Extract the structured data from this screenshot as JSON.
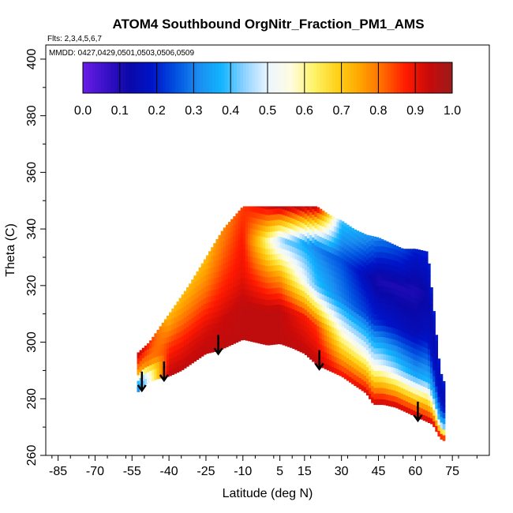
{
  "chart_data": {
    "type": "heatmap",
    "title": "ATOM4 Southbound OrgNitr_Fraction_PM1_AMS",
    "flights_label": "Flts: 2,3,4,5,6,7",
    "dates_label": "MMDD: 0427,0429,0501,0503,0506,0509",
    "xlabel": "Latitude (deg N)",
    "ylabel": "Theta (C)",
    "xlim": [
      -90,
      90
    ],
    "ylim": [
      260,
      405
    ],
    "x_ticks": [
      -85,
      -70,
      -55,
      -40,
      -25,
      -10,
      5,
      15,
      30,
      45,
      60,
      75
    ],
    "x_tick_labels": [
      "-85",
      "-70",
      "-55",
      "-40",
      "-25",
      "-10",
      "5",
      "15",
      "30",
      "45",
      "60",
      "75"
    ],
    "y_ticks": [
      260,
      280,
      300,
      320,
      340,
      360,
      380,
      400
    ],
    "y_tick_labels": [
      "260",
      "280",
      "300",
      "320",
      "340",
      "360",
      "380",
      "400"
    ],
    "colorbar": {
      "min": 0.0,
      "max": 1.0,
      "tick_labels": [
        "0.0",
        "0.1",
        "0.2",
        "0.3",
        "0.4",
        "0.5",
        "0.6",
        "0.7",
        "0.8",
        "0.9",
        "1.0"
      ],
      "colors": [
        "#6a1ee6",
        "#3a10c8",
        "#0a08a8",
        "#0014c8",
        "#0050e0",
        "#1a8cf0",
        "#12b4ff",
        "#8ed2ff",
        "#eaf6ff",
        "#fffce0",
        "#fff36a",
        "#ffd21a",
        "#ffa500",
        "#ff6a00",
        "#ff1a00",
        "#c80a0a",
        "#9b1b1b"
      ]
    },
    "profile_latitudes": [
      -51,
      -42,
      -20,
      21,
      61
    ],
    "surface_theta": [
      [
        -53,
        282
      ],
      [
        -50,
        285
      ],
      [
        -45,
        287
      ],
      [
        -40,
        288
      ],
      [
        -35,
        290
      ],
      [
        -30,
        293
      ],
      [
        -25,
        296
      ],
      [
        -20,
        297
      ],
      [
        -15,
        299
      ],
      [
        -10,
        301
      ],
      [
        -5,
        300
      ],
      [
        0,
        299
      ],
      [
        5,
        299.5
      ],
      [
        10,
        298
      ],
      [
        15,
        296
      ],
      [
        20,
        292
      ],
      [
        25,
        290
      ],
      [
        30,
        288
      ],
      [
        35,
        285
      ],
      [
        40,
        282
      ],
      [
        43,
        278
      ],
      [
        47,
        278
      ],
      [
        52,
        277
      ],
      [
        57,
        275
      ],
      [
        62,
        273
      ],
      [
        67,
        271
      ],
      [
        70,
        266
      ],
      [
        72,
        265
      ]
    ],
    "top_theta": [
      [
        -53,
        296
      ],
      [
        -48,
        300
      ],
      [
        -40,
        310
      ],
      [
        -32,
        320
      ],
      [
        -25,
        330
      ],
      [
        -18,
        340
      ],
      [
        -10,
        348
      ],
      [
        20,
        348
      ],
      [
        25,
        345
      ],
      [
        30,
        343
      ],
      [
        35,
        340
      ],
      [
        40,
        338
      ],
      [
        45,
        337
      ],
      [
        50,
        335
      ],
      [
        55,
        333
      ],
      [
        60,
        333
      ],
      [
        65,
        332
      ],
      [
        70,
        290
      ],
      [
        72,
        285
      ]
    ],
    "fraction_bands": [
      {
        "lat": -52,
        "values": [
          0.3,
          0.4,
          0.75,
          0.85,
          0.95
        ]
      },
      {
        "lat": -40,
        "values": [
          0.95,
          0.9,
          0.85,
          0.78,
          0.72
        ]
      },
      {
        "lat": -25,
        "values": [
          0.95,
          0.92,
          0.85,
          0.78,
          0.72
        ]
      },
      {
        "lat": -10,
        "values": [
          0.95,
          0.95,
          0.9,
          0.88,
          0.85
        ]
      },
      {
        "lat": 5,
        "values": [
          0.95,
          0.95,
          0.75,
          0.45,
          0.95
        ]
      },
      {
        "lat": 20,
        "values": [
          0.95,
          0.85,
          0.4,
          0.3,
          0.95
        ]
      },
      {
        "lat": 30,
        "values": [
          0.9,
          0.6,
          0.3,
          0.25,
          0.4
        ]
      },
      {
        "lat": 45,
        "values": [
          0.95,
          0.5,
          0.2,
          0.1,
          0.3
        ]
      },
      {
        "lat": 60,
        "values": [
          0.95,
          0.35,
          0.15,
          0.1,
          0.2
        ]
      },
      {
        "lat": 70,
        "values": [
          0.95,
          0.4,
          0.2,
          0.15,
          0.2
        ]
      }
    ]
  }
}
